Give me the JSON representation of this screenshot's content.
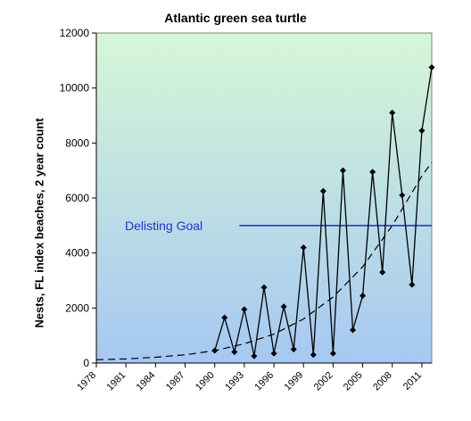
{
  "chart_data": {
    "type": "line",
    "title": "Atlantic green sea turtle",
    "xlabel": "",
    "ylabel": "Nests, FL index beaches, 2 year count",
    "ylim": [
      0,
      12000
    ],
    "xlim": [
      1978,
      2012
    ],
    "x_ticks": [
      1978,
      1981,
      1984,
      1987,
      1990,
      1993,
      1996,
      1999,
      2002,
      2005,
      2008,
      2011
    ],
    "y_ticks": [
      0,
      2000,
      4000,
      6000,
      8000,
      10000,
      12000
    ],
    "grid": false,
    "background_gradient": {
      "top": "#d6f7d6",
      "bottom": "#a6c8f2"
    },
    "series": [
      {
        "name": "",
        "style": "solid-with-diamond-markers",
        "color": "#000000",
        "x": [
          1990,
          1991,
          1992,
          1993,
          1994,
          1995,
          1996,
          1997,
          1998,
          1999,
          2000,
          2001,
          2002,
          2003,
          2004,
          2005,
          2006,
          2007,
          2008,
          2009,
          2010,
          2011,
          2012
        ],
        "y": [
          450,
          1650,
          400,
          1950,
          250,
          2750,
          350,
          2050,
          500,
          4200,
          300,
          6250,
          350,
          7000,
          1200,
          2450,
          6950,
          3300,
          9100,
          6100,
          2850,
          8450,
          10750
        ]
      },
      {
        "name": "",
        "style": "dashed-trend",
        "color": "#000000",
        "x": [
          1978,
          1981,
          1984,
          1987,
          1990,
          1993,
          1996,
          1999,
          2002,
          2005,
          2008,
          2011,
          2012
        ],
        "y": [
          120,
          150,
          210,
          300,
          450,
          700,
          1050,
          1600,
          2400,
          3500,
          5000,
          6800,
          7300
        ]
      }
    ],
    "reference_line": {
      "label": "Delisting Goal",
      "y": 5000,
      "x_start": 1992.5,
      "x_end": 2012,
      "color": "#1f2dbf",
      "label_color": "#2233cc"
    }
  }
}
